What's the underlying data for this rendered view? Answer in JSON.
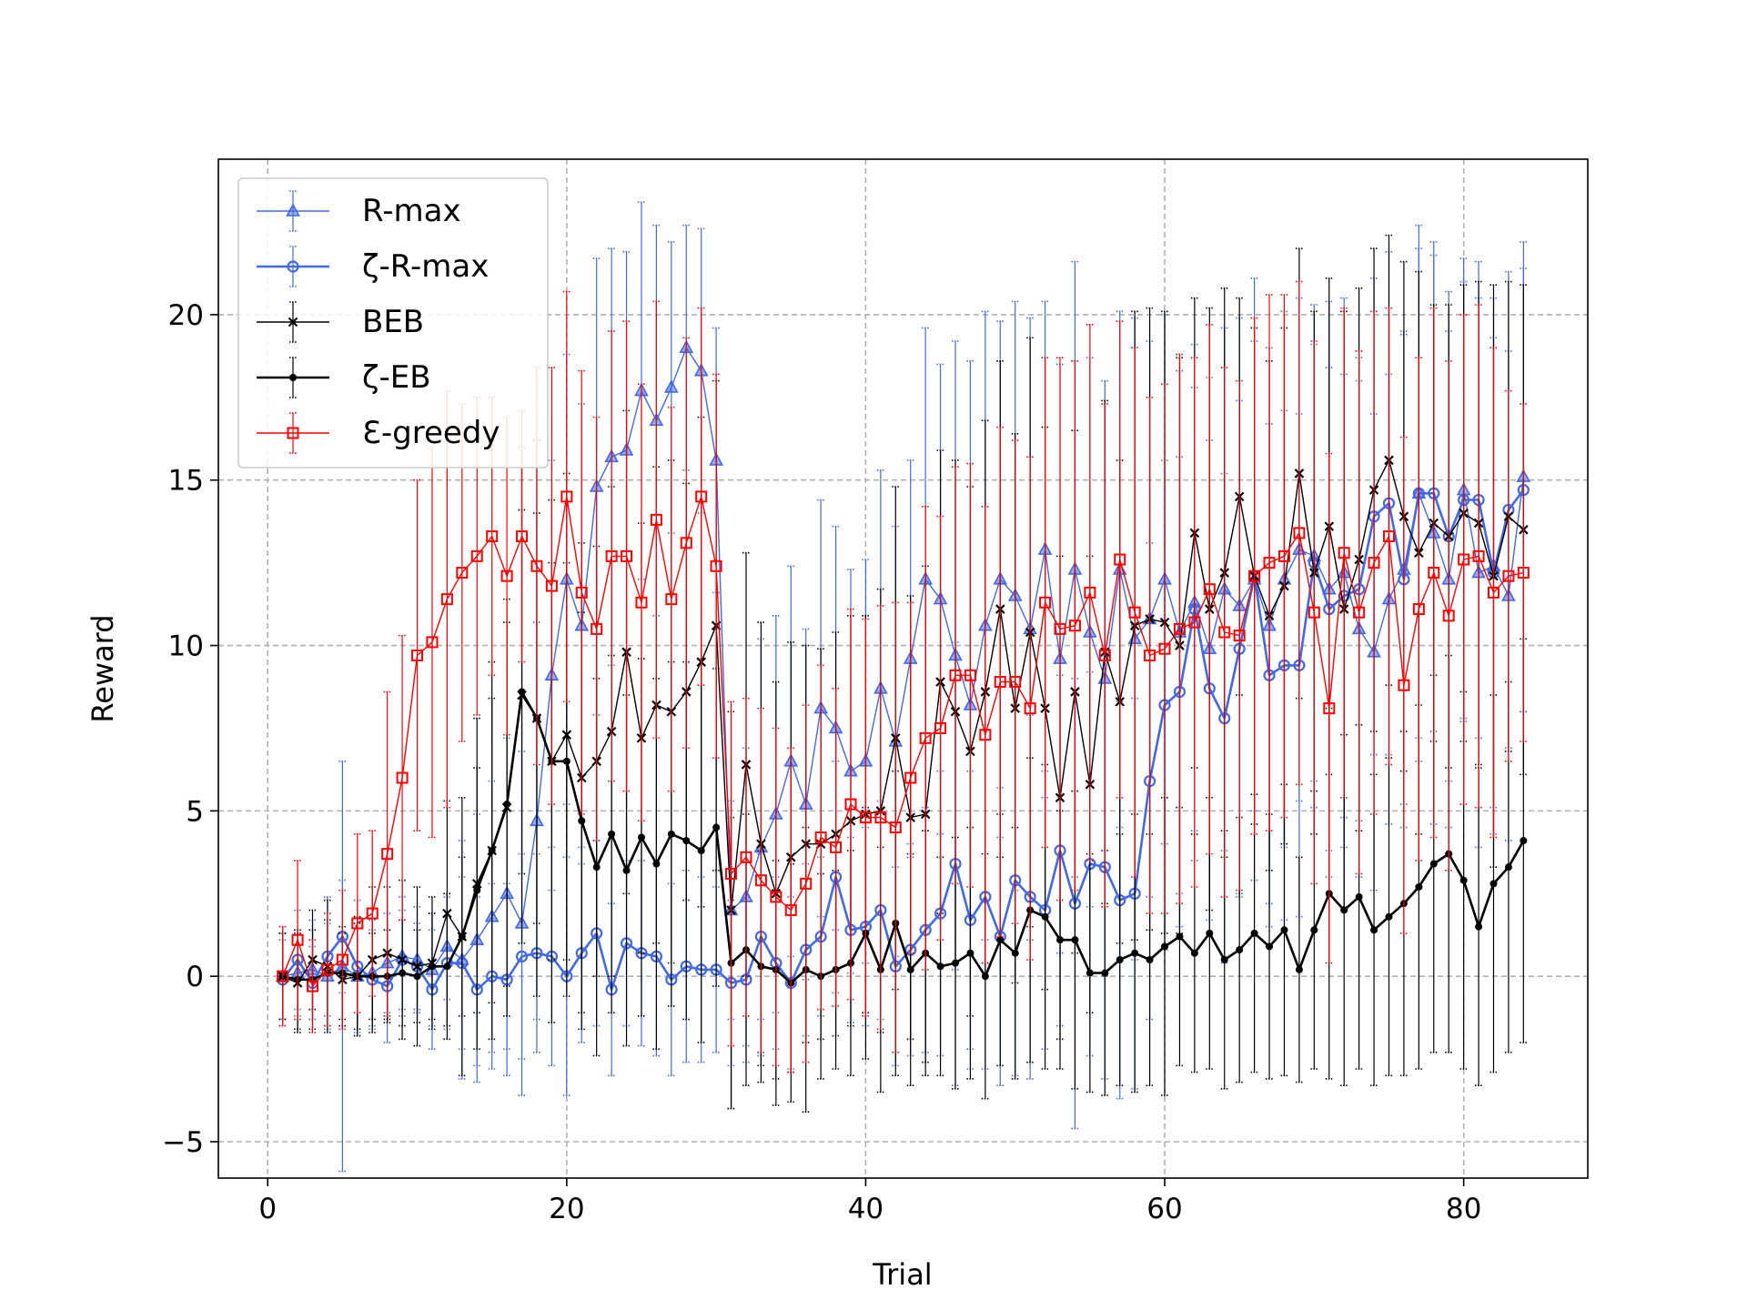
{
  "chart_data": {
    "type": "line",
    "title": "",
    "xlabel": "Trial",
    "ylabel": "Reward",
    "xlim": [
      -3.3,
      88.3
    ],
    "ylim": [
      -6.1,
      24.7
    ],
    "xticks": [
      0,
      20,
      40,
      60,
      80
    ],
    "yticks": [
      -5,
      0,
      5,
      10,
      15,
      20
    ],
    "ytick_labels": [
      "−5",
      "0",
      "5",
      "10",
      "15",
      "20"
    ],
    "grid": true,
    "legend_position": "top-left",
    "x_start": 1,
    "series": [
      {
        "name": "R-max",
        "color": "#4169e1",
        "marker": "triangle",
        "linewidth": 1.4,
        "values": [
          0.0,
          0.1,
          0.2,
          0.0,
          0.3,
          0.0,
          0.1,
          0.4,
          0.6,
          0.5,
          0.2,
          0.9,
          0.5,
          1.1,
          1.8,
          2.5,
          1.6,
          4.7,
          9.1,
          12.0,
          10.6,
          14.8,
          15.7,
          15.9,
          17.7,
          16.8,
          17.8,
          19.0,
          18.3,
          15.6,
          2.0,
          2.4,
          3.9,
          4.9,
          6.5,
          5.2,
          8.1,
          7.5,
          6.2,
          6.5,
          8.7,
          7.1,
          9.6,
          12.0,
          11.4,
          9.7,
          8.2,
          10.6,
          12.0,
          11.5,
          10.5,
          12.9,
          9.6,
          12.3,
          10.4,
          9.0,
          12.3,
          10.2,
          10.8,
          12.0,
          10.4,
          11.3,
          9.9,
          11.7,
          11.2,
          12.0,
          10.6,
          12.0,
          12.9,
          12.7,
          11.7,
          12.2,
          10.5,
          9.8,
          11.4,
          12.3,
          14.6,
          13.4,
          12.0,
          14.7,
          12.2,
          12.4,
          11.5,
          15.1
        ],
        "errors": [
          1.5,
          1.3,
          1.5,
          1.6,
          6.2,
          1.8,
          1.6,
          1.5,
          1.8,
          1.6,
          1.7,
          1.6,
          3.6,
          3.8,
          4.1,
          4.7,
          5.2,
          6.0,
          6.5,
          6.8,
          6.7,
          6.9,
          6.3,
          6.0,
          5.7,
          5.9,
          4.4,
          3.7,
          4.3,
          4.0,
          3.3,
          4.5,
          6.3,
          6.0,
          5.9,
          5.3,
          6.3,
          6.1,
          6.1,
          6.1,
          6.6,
          6.5,
          6.0,
          7.6,
          7.1,
          9.5,
          10.4,
          9.5,
          7.8,
          8.9,
          9.4,
          7.5,
          8.9,
          9.3,
          8.3,
          9.0,
          7.8,
          9.7,
          8.4,
          8.0,
          7.9,
          7.8,
          8.2,
          7.9,
          8.7,
          9.1,
          8.4,
          8.1,
          7.6,
          7.6,
          8.7,
          8.3,
          7.5,
          7.2,
          6.8,
          7.1,
          8.1,
          8.8,
          7.5,
          7.0,
          8.3,
          8.1,
          7.4,
          7.1
        ]
      },
      {
        "name": "ζ-R-max",
        "color": "#4169e1",
        "marker": "circle",
        "linewidth": 2.6,
        "values": [
          -0.1,
          0.5,
          -0.2,
          0.6,
          1.2,
          0.3,
          -0.1,
          -0.3,
          0.5,
          0.3,
          -0.4,
          0.4,
          0.4,
          -0.4,
          0.0,
          -0.1,
          0.6,
          0.7,
          0.6,
          0.0,
          0.7,
          1.3,
          -0.4,
          1.0,
          0.7,
          0.6,
          -0.1,
          0.3,
          0.2,
          0.2,
          -0.2,
          -0.1,
          1.2,
          0.4,
          -0.2,
          0.8,
          1.2,
          3.0,
          1.4,
          1.5,
          2.0,
          0.3,
          0.8,
          1.4,
          1.9,
          3.4,
          1.7,
          2.4,
          1.2,
          2.9,
          2.4,
          2.0,
          3.8,
          2.2,
          3.4,
          3.3,
          2.3,
          2.5,
          5.9,
          8.2,
          8.6,
          11.1,
          8.7,
          7.8,
          9.9,
          12.1,
          9.1,
          9.4,
          9.4,
          12.5,
          11.1,
          11.5,
          11.7,
          13.9,
          14.3,
          12.0,
          14.6,
          14.6,
          13.3,
          14.4,
          14.4,
          12.2,
          14.1,
          14.7
        ],
        "errors": [
          1.2,
          1.5,
          1.1,
          1.8,
          1.7,
          2.0,
          1.5,
          1.7,
          1.5,
          1.3,
          1.8,
          2.0,
          2.6,
          2.8,
          2.8,
          2.9,
          3.1,
          3.0,
          3.3,
          3.6,
          2.7,
          2.8,
          2.6,
          2.5,
          2.8,
          3.0,
          2.9,
          2.9,
          2.8,
          2.5,
          2.5,
          2.5,
          2.5,
          2.6,
          2.6,
          2.6,
          2.4,
          3.5,
          2.8,
          3.0,
          3.3,
          3.0,
          3.2,
          3.7,
          4.3,
          6.7,
          4.5,
          5.2,
          4.5,
          5.9,
          5.5,
          4.2,
          5.3,
          6.8,
          5.8,
          6.4,
          6.0,
          5.9,
          7.2,
          7.4,
          7.1,
          6.7,
          7.5,
          7.4,
          7.5,
          7.1,
          7.6,
          7.7,
          7.6,
          6.6,
          7.3,
          6.7,
          7.0,
          7.2,
          7.6,
          7.5,
          7.4,
          7.2,
          7.4,
          6.6,
          7.2,
          7.1,
          7.2,
          6.7
        ]
      },
      {
        "name": "BEB",
        "color": "#000000",
        "marker": "x",
        "linewidth": 1.4,
        "values": [
          0.0,
          -0.2,
          0.5,
          0.3,
          -0.1,
          0.0,
          0.5,
          0.7,
          0.5,
          0.3,
          0.4,
          1.9,
          1.2,
          2.8,
          3.8,
          5.1,
          8.5,
          7.8,
          6.5,
          7.3,
          6.0,
          6.5,
          7.4,
          9.8,
          7.2,
          8.2,
          8.0,
          8.6,
          9.5,
          10.6,
          2.0,
          6.4,
          4.0,
          2.5,
          3.6,
          4.0,
          4.0,
          4.3,
          4.7,
          4.9,
          5.0,
          7.2,
          4.8,
          4.9,
          8.9,
          8.0,
          6.8,
          8.6,
          11.1,
          8.1,
          10.4,
          8.1,
          5.4,
          8.6,
          5.8,
          9.8,
          8.3,
          10.6,
          10.8,
          10.7,
          10.0,
          13.4,
          11.1,
          12.2,
          14.5,
          12.1,
          10.9,
          11.8,
          15.2,
          12.2,
          13.6,
          11.1,
          12.6,
          14.7,
          15.6,
          13.9,
          12.8,
          13.7,
          13.3,
          14.0,
          13.7,
          12.1,
          13.9,
          13.5
        ],
        "errors": [
          1.3,
          1.5,
          1.5,
          2.0,
          1.4,
          1.8,
          2.2,
          2.0,
          2.4,
          2.4,
          2.0,
          3.4,
          4.2,
          5.0,
          5.7,
          6.3,
          7.5,
          8.4,
          7.9,
          7.9,
          7.1,
          6.5,
          7.4,
          7.3,
          6.5,
          7.2,
          7.6,
          6.3,
          7.4,
          7.4,
          6.0,
          6.4,
          6.7,
          6.4,
          6.5,
          6.0,
          5.9,
          6.1,
          6.2,
          6.0,
          6.7,
          7.6,
          6.7,
          7.5,
          7.0,
          7.6,
          8.0,
          8.2,
          7.5,
          8.3,
          8.9,
          8.5,
          7.3,
          7.9,
          6.9,
          7.6,
          7.3,
          9.5,
          9.4,
          9.4,
          8.7,
          7.1,
          9.1,
          8.6,
          6.0,
          7.5,
          7.7,
          7.8,
          6.8,
          7.9,
          7.5,
          9.0,
          8.2,
          7.3,
          6.8,
          7.7,
          8.5,
          6.6,
          7.0,
          6.9,
          7.3,
          8.8,
          7.1,
          7.4
        ]
      },
      {
        "name": "ζ-EB",
        "color": "#000000",
        "marker": "dot",
        "linewidth": 2.6,
        "values": [
          0.0,
          -0.1,
          -0.1,
          0.1,
          0.1,
          0.0,
          0.0,
          0.0,
          0.1,
          0.0,
          0.3,
          0.3,
          1.2,
          2.6,
          3.8,
          5.2,
          8.6,
          7.8,
          6.5,
          6.5,
          4.7,
          3.3,
          4.3,
          3.2,
          4.2,
          3.4,
          4.3,
          4.1,
          3.8,
          4.5,
          0.4,
          0.8,
          0.3,
          0.2,
          -0.2,
          0.2,
          0.0,
          0.2,
          0.4,
          1.3,
          0.2,
          1.6,
          0.2,
          0.7,
          0.3,
          0.4,
          0.7,
          0.0,
          1.1,
          0.7,
          2.0,
          1.8,
          1.1,
          1.1,
          0.1,
          0.1,
          0.5,
          0.7,
          0.5,
          0.9,
          1.2,
          0.7,
          1.3,
          0.5,
          0.8,
          1.3,
          0.9,
          1.4,
          0.2,
          1.4,
          2.5,
          2.0,
          2.4,
          1.4,
          1.8,
          2.2,
          2.7,
          3.4,
          3.7,
          2.9,
          1.5,
          2.8,
          3.3,
          4.1
        ],
        "errors": [
          1.3,
          1.5,
          1.5,
          1.6,
          1.4,
          1.6,
          1.3,
          1.4,
          1.6,
          1.4,
          1.6,
          2.2,
          2.4,
          3.7,
          4.6,
          5.5,
          5.5,
          6.2,
          6.0,
          6.0,
          6.3,
          5.7,
          5.4,
          5.3,
          5.4,
          5.6,
          5.2,
          5.4,
          5.8,
          4.8,
          4.4,
          4.1,
          3.5,
          3.3,
          3.6,
          4.3,
          3.1,
          3.0,
          3.4,
          3.8,
          3.7,
          4.6,
          3.5,
          3.7,
          3.3,
          3.8,
          3.8,
          3.7,
          3.8,
          3.8,
          4.6,
          4.6,
          3.9,
          4.5,
          3.6,
          3.7,
          3.8,
          4.2,
          3.8,
          4.5,
          3.9,
          3.6,
          4.1,
          3.9,
          4.0,
          4.2,
          4.0,
          4.4,
          3.4,
          4.2,
          5.6,
          5.3,
          5.2,
          4.7,
          4.8,
          5.2,
          5.5,
          5.7,
          6.0,
          5.7,
          4.8,
          5.7,
          5.6,
          6.1
        ]
      },
      {
        "name": "Ɛ-greedy",
        "color": "#ff0000",
        "marker": "square",
        "linewidth": 1.4,
        "values": [
          0.0,
          1.1,
          -0.3,
          0.2,
          0.5,
          1.6,
          1.9,
          3.7,
          6.0,
          9.7,
          10.1,
          11.4,
          12.2,
          12.7,
          13.3,
          12.1,
          13.3,
          12.4,
          11.8,
          14.5,
          11.6,
          10.5,
          12.7,
          12.7,
          11.3,
          13.8,
          11.4,
          13.1,
          14.5,
          12.4,
          3.1,
          3.6,
          2.9,
          2.4,
          2.0,
          2.8,
          4.2,
          3.9,
          5.2,
          4.8,
          4.8,
          4.5,
          6.0,
          7.2,
          7.5,
          9.1,
          9.1,
          7.3,
          8.9,
          8.9,
          8.1,
          11.3,
          10.5,
          10.6,
          11.6,
          9.7,
          12.6,
          11.0,
          9.7,
          9.9,
          10.5,
          10.7,
          11.7,
          10.4,
          10.3,
          12.1,
          12.5,
          12.7,
          13.4,
          11.0,
          8.1,
          12.8,
          11.0,
          12.5,
          13.3,
          8.8,
          11.1,
          12.2,
          10.9,
          12.6,
          12.7,
          11.6,
          12.1,
          12.2
        ],
        "errors": [
          1.5,
          2.4,
          1.4,
          1.7,
          2.1,
          2.7,
          2.5,
          4.9,
          4.3,
          5.3,
          5.9,
          6.3,
          5.1,
          4.8,
          4.2,
          4.8,
          3.8,
          6.0,
          6.6,
          6.2,
          6.7,
          6.4,
          6.8,
          7.1,
          6.6,
          6.6,
          5.8,
          6.2,
          5.7,
          5.8,
          5.2,
          4.8,
          5.2,
          5.1,
          4.9,
          5.4,
          5.2,
          4.8,
          5.9,
          6.0,
          6.4,
          6.8,
          5.3,
          7.0,
          6.4,
          6.3,
          6.4,
          6.9,
          7.7,
          7.3,
          7.6,
          7.4,
          8.2,
          8.0,
          8.1,
          7.6,
          7.2,
          8.0,
          7.8,
          8.0,
          8.3,
          8.0,
          8.0,
          8.0,
          7.7,
          7.8,
          8.1,
          7.9,
          7.6,
          8.2,
          7.7,
          7.4,
          7.9,
          7.6,
          6.9,
          7.5,
          7.6,
          8.0,
          7.7,
          7.4,
          7.6,
          7.4,
          5.6,
          5.1
        ]
      }
    ]
  }
}
